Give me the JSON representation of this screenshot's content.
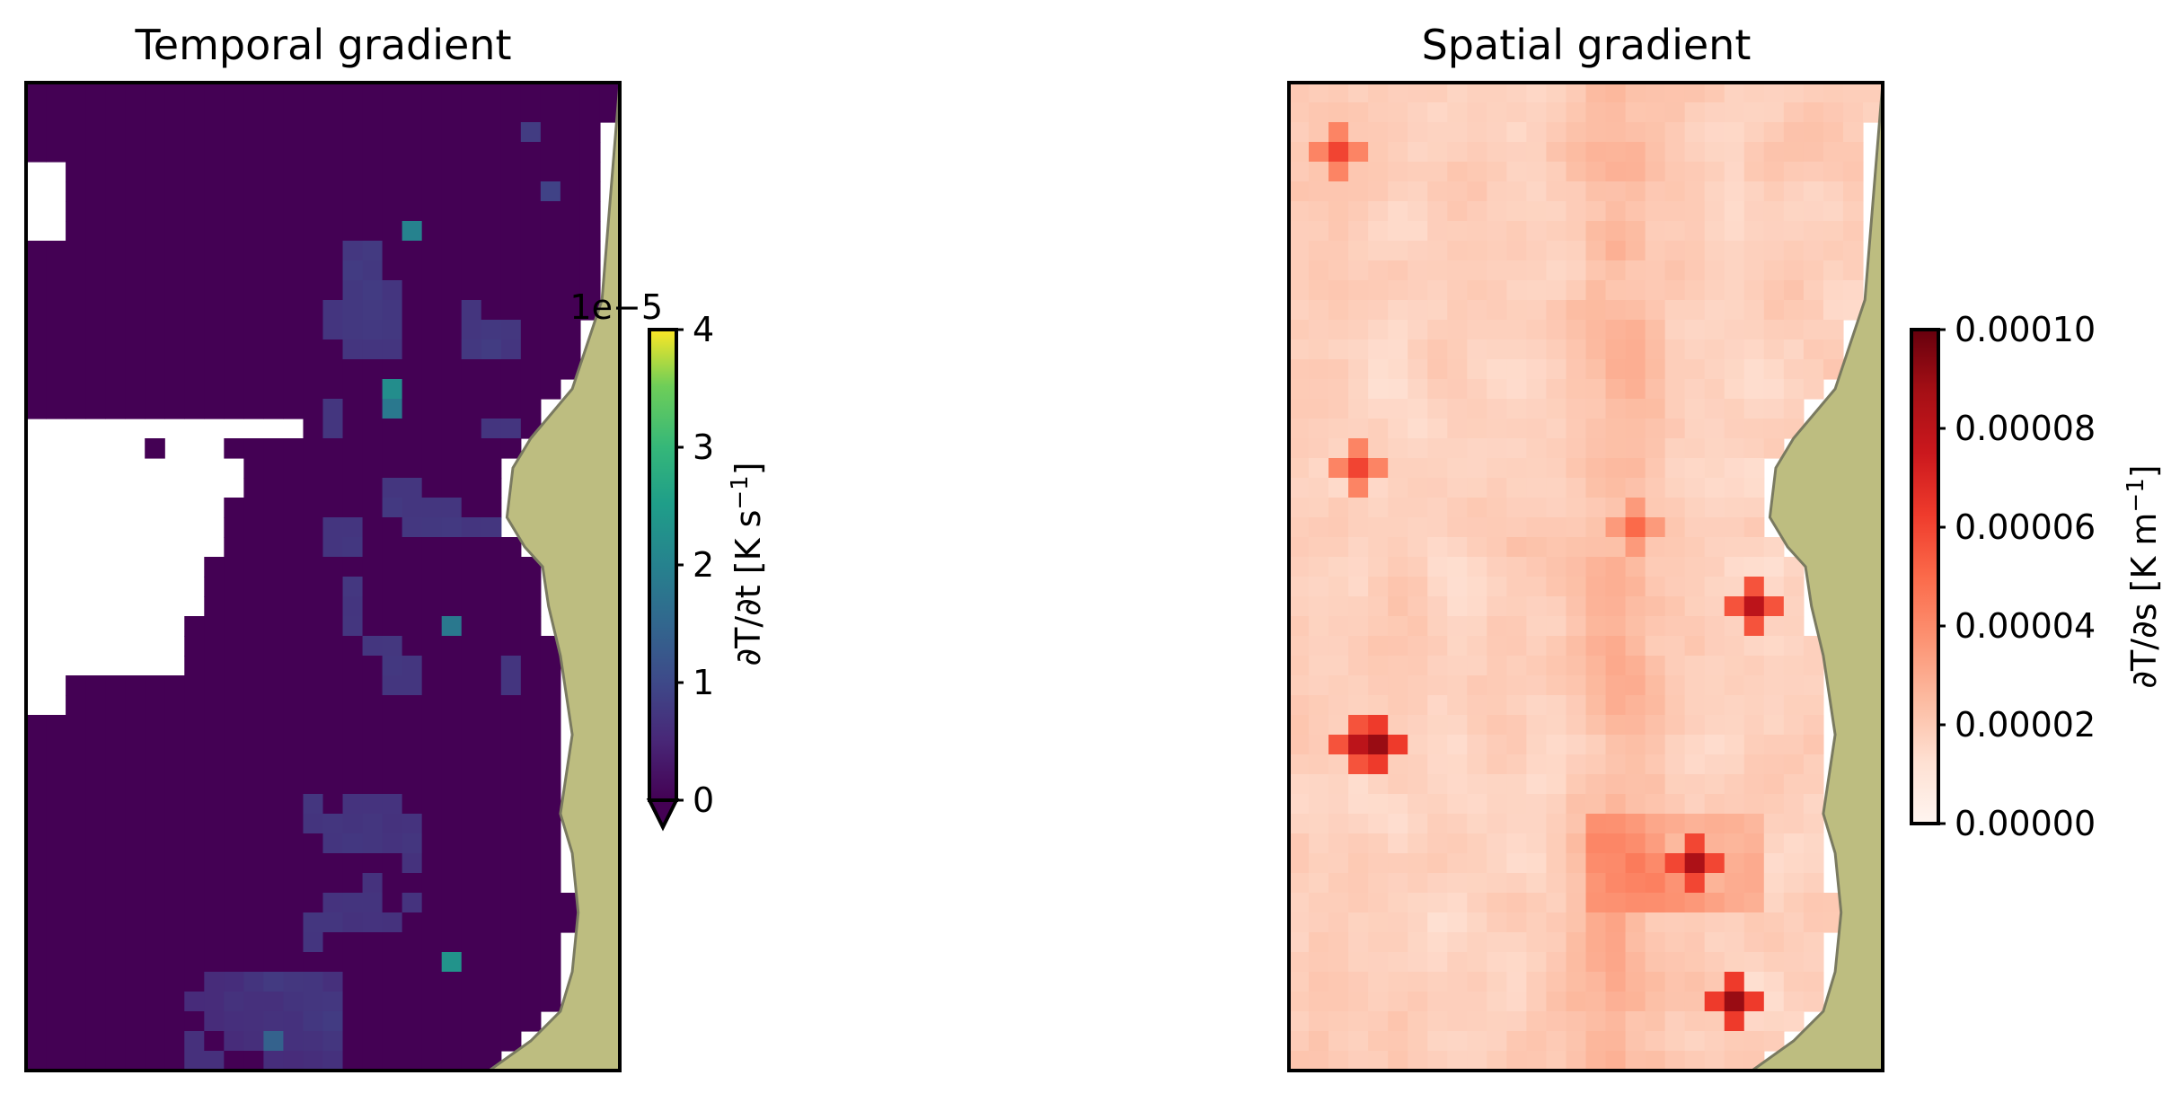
{
  "figure": {
    "panels": [
      {
        "title": "Temporal gradient",
        "colorbar": {
          "label_main": "∂T/∂t [K s",
          "label_sup": "−1",
          "label_end": "]",
          "offset_text": "1e−5",
          "ticks": [
            "0",
            "1",
            "2",
            "3",
            "4"
          ],
          "extend": "min",
          "colormap": "viridis"
        }
      },
      {
        "title": "Spatial gradient",
        "colorbar": {
          "label_main": "∂T/∂s [K m",
          "label_sup": "−1",
          "label_end": "]",
          "ticks": [
            "0.00000",
            "0.00002",
            "0.00004",
            "0.00006",
            "0.00008",
            "0.00010"
          ],
          "colormap": "Reds"
        }
      }
    ],
    "land_color": "#bdbd80",
    "land_edge_color": "#7a7a60"
  },
  "chart_data": [
    {
      "type": "heatmap",
      "title": "Temporal gradient",
      "value_label": "∂T/∂t [K s^-1]",
      "scale": "1e-5",
      "vmin": 0,
      "vmax": 4,
      "colormap": "viridis",
      "extend": "min",
      "colorbar_ticks": [
        0,
        1,
        2,
        3,
        4
      ],
      "notes": "values mostly at or below 0; scattered patches around 0.5–2.2 (×1e-5)",
      "grid_ncols": 30,
      "grid_nrows": 50,
      "hotspots": [
        {
          "col": 19,
          "row": 7,
          "value": 2.0
        },
        {
          "col": 18,
          "row": 15,
          "value": 2.2
        },
        {
          "col": 18,
          "row": 16,
          "value": 1.8
        },
        {
          "col": 21,
          "row": 27,
          "value": 1.8
        },
        {
          "col": 21,
          "row": 44,
          "value": 2.3
        },
        {
          "col": 12,
          "row": 48,
          "value": 1.4
        },
        {
          "col": 26,
          "row": 5,
          "value": 0.9
        },
        {
          "col": 25,
          "row": 2,
          "value": 0.8
        }
      ]
    },
    {
      "type": "heatmap",
      "title": "Spatial gradient",
      "value_label": "∂T/∂s [K m^-1]",
      "vmin": 0.0,
      "vmax": 0.0001,
      "colormap": "Reds",
      "colorbar_ticks": [
        0.0,
        2e-05,
        4e-05,
        6e-05,
        8e-05,
        0.0001
      ],
      "grid_ncols": 30,
      "grid_nrows": 50,
      "hotspots": [
        {
          "col": 4,
          "row": 33,
          "value": 9e-05
        },
        {
          "col": 3,
          "row": 33,
          "value": 8e-05
        },
        {
          "col": 20,
          "row": 39,
          "value": 8.5e-05
        },
        {
          "col": 22,
          "row": 46,
          "value": 9e-05
        },
        {
          "col": 23,
          "row": 26,
          "value": 8e-05
        },
        {
          "col": 2,
          "row": 3,
          "value": 6e-05
        },
        {
          "col": 3,
          "row": 19,
          "value": 6e-05
        },
        {
          "col": 17,
          "row": 22,
          "value": 5e-05
        }
      ]
    }
  ]
}
